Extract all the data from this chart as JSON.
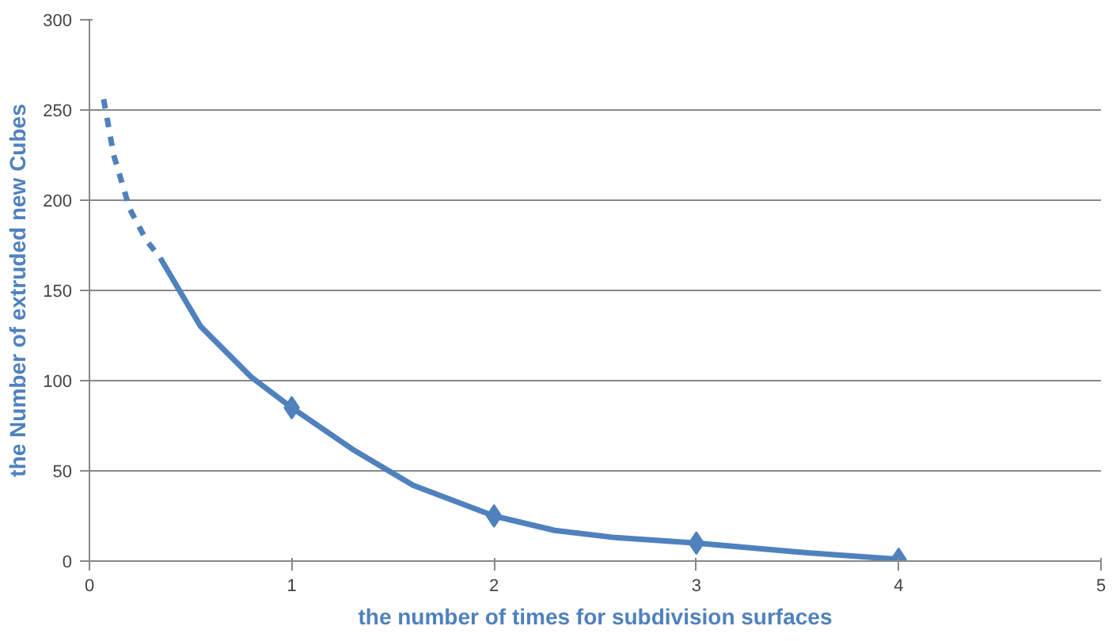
{
  "chart_data": {
    "type": "line",
    "xlabel": "the number of times for subdivision surfaces",
    "ylabel": "the Number of extruded new Cubes",
    "series": [
      {
        "color": "#4f81bd",
        "line_style": "dashed",
        "marker": "none",
        "x": [
          0.07,
          0.12,
          0.2,
          0.28,
          0.35
        ],
        "values": [
          256,
          225,
          195,
          178,
          168
        ]
      },
      {
        "color": "#4f81bd",
        "line_style": "solid",
        "marker": "none",
        "x": [
          0.35,
          0.55,
          0.8,
          1,
          1.3,
          1.6,
          2,
          2.3,
          2.6,
          3,
          3.5,
          4
        ],
        "values": [
          168,
          130,
          102,
          85,
          62,
          42,
          25,
          17,
          13,
          10,
          5,
          1
        ]
      },
      {
        "type": "scatter",
        "color": "#4f81bd",
        "marker": "diamond",
        "x": [
          1,
          2,
          3,
          4
        ],
        "values": [
          85,
          25,
          10,
          1
        ]
      }
    ],
    "xlim": [
      0,
      5
    ],
    "xticks": [
      0,
      1,
      2,
      3,
      4,
      5
    ],
    "ylim": [
      0,
      300
    ],
    "yticks": [
      0,
      50,
      100,
      150,
      200,
      250,
      300
    ],
    "grid": "y"
  }
}
